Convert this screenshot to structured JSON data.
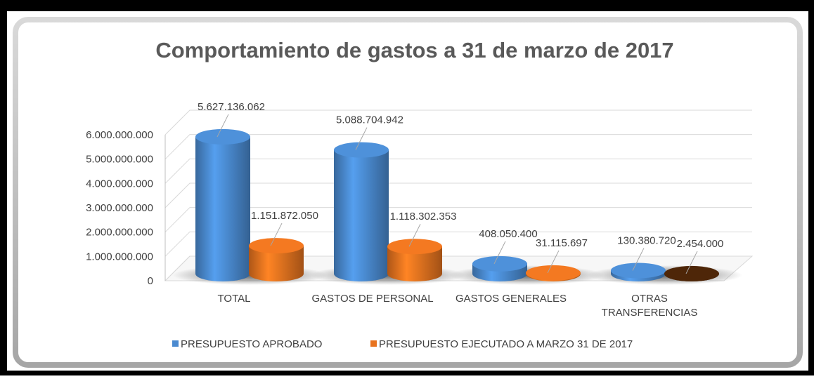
{
  "chart_data": {
    "type": "bar3d",
    "title": "Comportamiento de gastos a 31 de marzo de 2017",
    "categories": [
      "TOTAL",
      "GASTOS DE PERSONAL",
      "GASTOS GENERALES",
      "OTRAS TRANSFERENCIAS"
    ],
    "series": [
      {
        "name": "PRESUPUESTO APROBADO",
        "color": "#4a8ad0",
        "values": [
          5627136062,
          5088704942,
          408050400,
          130380720
        ],
        "value_labels": [
          "5.627.136.062",
          "5.088.704.942",
          "408.050.400",
          "130.380.720"
        ]
      },
      {
        "name": "PRESUPUESTO EJECUTADO A MARZO 31 DE 2017",
        "color": "#e8731f",
        "point_colors": [
          "#e8731f",
          "#e8731f",
          "#e8731f",
          "#4a2408"
        ],
        "values": [
          1151872050,
          1118302353,
          31115697,
          2454000
        ],
        "value_labels": [
          "1.151.872.050",
          "1.118.302.353",
          "31.115.697",
          "2.454.000"
        ]
      }
    ],
    "ylim": [
      0,
      6000000000
    ],
    "yticks": [
      0,
      {
        "value": 1000000000,
        "label": "1.000.000.000"
      },
      {
        "value": 2000000000,
        "label": "2.000.000.000"
      },
      {
        "value": 3000000000,
        "label": "3.000.000.000"
      },
      {
        "value": 4000000000,
        "label": "4.000.000.000"
      },
      {
        "value": 5000000000,
        "label": "5.000.000.000"
      },
      {
        "value": 6000000000,
        "label": "6.000.000.000"
      }
    ],
    "grid": true,
    "legend": "bottom"
  }
}
